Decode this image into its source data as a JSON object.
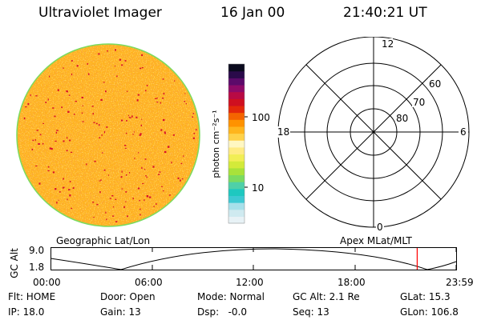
{
  "header": {
    "title": "Ultraviolet Imager",
    "date": "16 Jan 00",
    "time": "21:40:21 UT"
  },
  "colorbar": {
    "unit_label": "photon cm⁻²s⁻¹",
    "tick_100": "100",
    "tick_10": "10",
    "colors": [
      "#e8f2f6",
      "#cfeaf0",
      "#a6e0ea",
      "#3dc9d3",
      "#1ec8c0",
      "#4fd0a8",
      "#7bdb60",
      "#a8e23a",
      "#d3ea3a",
      "#f1ee55",
      "#ffeb83",
      "#fff7c2",
      "#ffd24a",
      "#ffb51d",
      "#ff9200",
      "#f46400",
      "#e3280a",
      "#cf0f20",
      "#b80a44",
      "#8e0a68",
      "#5c0a6a",
      "#2a0a4a",
      "#0a0a1e"
    ]
  },
  "polar": {
    "mlt_12": "12",
    "mlt_18": "18",
    "mlt_6": "6",
    "mlt_0": "0",
    "lat_60": "60",
    "lat_70": "70",
    "lat_80": "80"
  },
  "footer": {
    "geo_label": "Geographic Lat/Lon",
    "apex_label": "Apex MLat/MLT"
  },
  "altitude_plot": {
    "ylabel": "GC Alt",
    "y_max_label": "9.0",
    "y_min_label": "1.8",
    "x_ticks": [
      "00:00",
      "06:00",
      "12:00",
      "18:00",
      "23:59"
    ],
    "current_time_hours": 21.67,
    "marker_color": "#ff0000"
  },
  "info": {
    "flt": "Flt: HOME",
    "door": "Door: Open",
    "mode": "Mode: Normal",
    "gcalt": "GC Alt: 2.1 Re",
    "glat": "GLat: 15.3",
    "ip": "IP: 18.0",
    "gain": "Gain: 13",
    "dsp": "Dsp:   -0.0",
    "seq": "Seq: 13",
    "glon": "GLon: 106.8"
  }
}
